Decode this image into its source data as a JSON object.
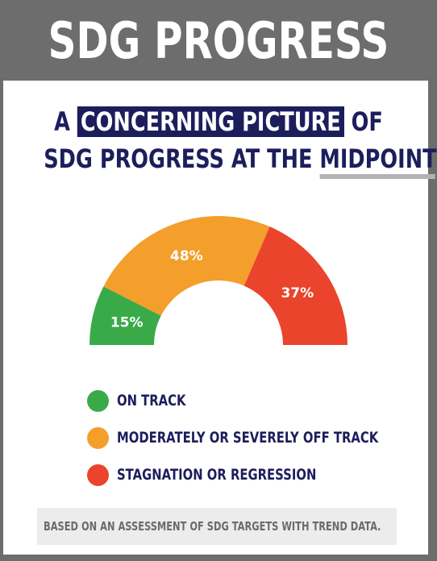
{
  "header": {
    "title": "SDG PROGRESS"
  },
  "headline": {
    "line1_prefix": "A",
    "line1_highlight": "CONCERNING PICTURE",
    "line1_suffix": "OF",
    "line2_prefix": "SDG PROGRESS AT THE",
    "line2_underlined": "MIDPOINT",
    "line2_suffix": ":"
  },
  "chart_data": {
    "type": "pie",
    "variant": "half-donut gauge",
    "title": "",
    "slices": [
      {
        "name": "ON TRACK",
        "value": 15,
        "label": "15%",
        "color": "#3aaa49"
      },
      {
        "name": "MODERATELY OR SEVERELY OFF TRACK",
        "value": 48,
        "label": "48%",
        "color": "#f49e2b"
      },
      {
        "name": "STAGNATION OR REGRESSION",
        "value": 37,
        "label": "37%",
        "color": "#ea442c"
      }
    ],
    "legend_placement": "bottom"
  },
  "footnote": "BASED ON AN ASSESSMENT OF SDG TARGETS WITH TREND DATA.",
  "colors": {
    "navy": "#1c1e5c",
    "frame_gray": "#6d6d6d",
    "underline_gray": "#b3b3b3",
    "footnote_bg": "#ececec"
  }
}
